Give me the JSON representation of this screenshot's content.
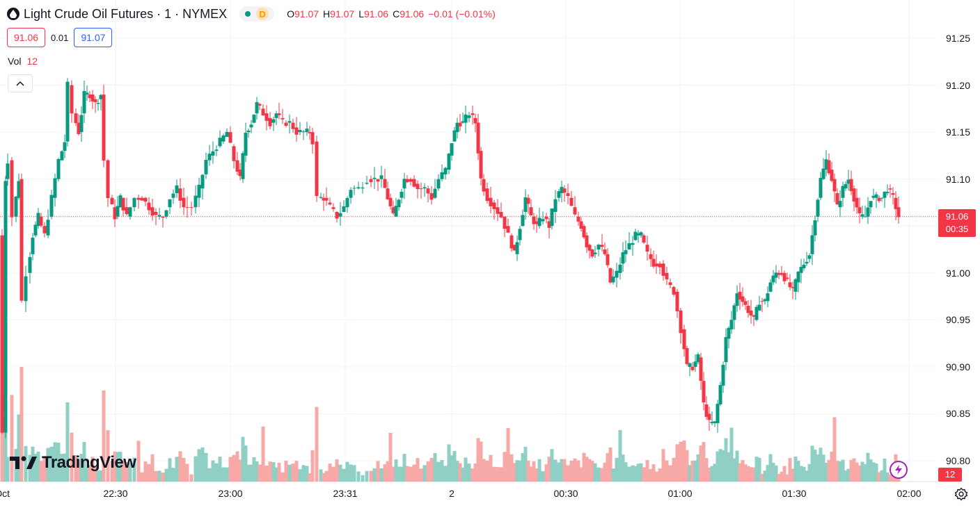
{
  "header": {
    "symbol_title": "Light Crude Oil Futures · 1 · NYMEX",
    "status_badge": "D",
    "ohlc": {
      "open_label": "O",
      "open": "91.07",
      "high_label": "H",
      "high": "91.07",
      "low_label": "L",
      "low": "91.06",
      "close_label": "C",
      "close": "91.06",
      "change": "−0.01 (−0.01%)"
    }
  },
  "trade": {
    "sell_price": "91.06",
    "spread": "0.01",
    "buy_price": "91.07"
  },
  "volume_legend": {
    "label": "Vol",
    "value": "12"
  },
  "price_axis": {
    "ticks": [
      "91.25",
      "91.20",
      "91.15",
      "91.10",
      "91.05",
      "91.00",
      "90.95",
      "90.90",
      "90.85",
      "90.80"
    ]
  },
  "time_axis": {
    "partial_label": "Oct",
    "ticks": [
      "22:30",
      "23:00",
      "23:31",
      "2",
      "00:30",
      "01:00",
      "01:30",
      "02:00"
    ]
  },
  "last_price": {
    "price": "91.06",
    "countdown": "00:35"
  },
  "last_volume": "12",
  "branding": {
    "logo_text": "TradingView"
  },
  "colors": {
    "up": "#089981",
    "down": "#f23645",
    "up_vol": "#8fcfc4",
    "down_vol": "#f7a9a7",
    "grid": "#f0f3fa",
    "text": "#131722"
  },
  "chart_data": {
    "type": "candlestick",
    "interval": "1 minute",
    "ylim": [
      90.775,
      91.27
    ],
    "price_ticks": [
      91.25,
      91.2,
      91.15,
      91.1,
      91.05,
      91.0,
      90.95,
      90.9,
      90.85,
      90.8
    ],
    "last_price": 91.06,
    "segments": [
      {
        "label": "start",
        "path": [
          [
            0,
            91.04
          ],
          [
            5,
            90.83
          ],
          [
            8,
            91.1
          ],
          [
            14,
            91.12
          ],
          [
            20,
            91.06
          ],
          [
            28,
            91.1
          ],
          [
            34,
            90.97
          ],
          [
            40,
            91.0
          ],
          [
            48,
            91.04
          ],
          [
            56,
            91.06
          ],
          [
            66,
            91.04
          ],
          [
            76,
            91.08
          ],
          [
            86,
            91.12
          ],
          [
            94,
            91.14
          ],
          [
            100,
            91.2
          ],
          [
            106,
            91.17
          ],
          [
            114,
            91.15
          ],
          [
            122,
            91.19
          ],
          [
            130,
            91.19
          ],
          [
            138,
            91.18
          ],
          [
            146,
            91.19
          ],
          [
            152,
            91.12
          ],
          [
            158,
            91.08
          ],
          [
            166,
            91.06
          ],
          [
            174,
            91.08
          ],
          [
            184,
            91.06
          ],
          [
            196,
            91.08
          ],
          [
            206,
            91.08
          ],
          [
            216,
            91.07
          ],
          [
            226,
            91.06
          ],
          [
            236,
            91.06
          ],
          [
            246,
            91.08
          ],
          [
            256,
            91.09
          ],
          [
            266,
            91.07
          ],
          [
            278,
            91.07
          ],
          [
            288,
            91.09
          ],
          [
            298,
            91.12
          ],
          [
            308,
            91.13
          ],
          [
            318,
            91.14
          ],
          [
            328,
            91.15
          ],
          [
            338,
            91.12
          ],
          [
            346,
            91.1
          ],
          [
            354,
            91.15
          ],
          [
            362,
            91.16
          ],
          [
            370,
            91.18
          ],
          [
            380,
            91.17
          ],
          [
            390,
            91.16
          ],
          [
            398,
            91.17
          ],
          [
            408,
            91.16
          ],
          [
            418,
            91.16
          ],
          [
            428,
            91.15
          ],
          [
            438,
            91.15
          ],
          [
            446,
            91.15
          ],
          [
            452,
            91.14
          ],
          [
            458,
            91.08
          ],
          [
            466,
            91.08
          ],
          [
            476,
            91.07
          ],
          [
            486,
            91.06
          ],
          [
            496,
            91.07
          ],
          [
            506,
            91.09
          ],
          [
            518,
            91.09
          ],
          [
            530,
            91.1
          ],
          [
            540,
            91.1
          ],
          [
            550,
            91.1
          ],
          [
            558,
            91.08
          ],
          [
            566,
            91.06
          ],
          [
            574,
            91.08
          ],
          [
            582,
            91.1
          ],
          [
            592,
            91.1
          ],
          [
            602,
            91.09
          ],
          [
            612,
            91.09
          ],
          [
            622,
            91.08
          ],
          [
            632,
            91.1
          ],
          [
            642,
            91.11
          ],
          [
            650,
            91.14
          ],
          [
            658,
            91.16
          ],
          [
            666,
            91.16
          ],
          [
            676,
            91.17
          ],
          [
            684,
            91.16
          ],
          [
            692,
            91.1
          ],
          [
            702,
            91.08
          ],
          [
            712,
            91.07
          ],
          [
            722,
            91.06
          ],
          [
            732,
            91.04
          ],
          [
            740,
            91.02
          ],
          [
            748,
            91.05
          ],
          [
            756,
            91.08
          ],
          [
            764,
            91.06
          ],
          [
            772,
            91.05
          ],
          [
            782,
            91.06
          ],
          [
            790,
            91.05
          ],
          [
            800,
            91.08
          ],
          [
            808,
            91.09
          ],
          [
            818,
            91.08
          ],
          [
            828,
            91.06
          ],
          [
            836,
            91.05
          ],
          [
            844,
            91.03
          ],
          [
            852,
            91.02
          ],
          [
            862,
            91.03
          ],
          [
            870,
            91.02
          ],
          [
            878,
            90.99
          ],
          [
            888,
            91.0
          ],
          [
            896,
            91.02
          ],
          [
            906,
            91.03
          ],
          [
            914,
            91.04
          ],
          [
            922,
            91.04
          ],
          [
            932,
            91.02
          ],
          [
            940,
            91.01
          ],
          [
            950,
            91.01
          ],
          [
            960,
            90.99
          ],
          [
            970,
            90.98
          ],
          [
            980,
            90.94
          ],
          [
            988,
            90.9
          ],
          [
            996,
            90.9
          ],
          [
            1004,
            90.91
          ],
          [
            1012,
            90.86
          ],
          [
            1020,
            90.84
          ],
          [
            1028,
            90.84
          ],
          [
            1036,
            90.88
          ],
          [
            1044,
            90.93
          ],
          [
            1052,
            90.95
          ],
          [
            1060,
            90.98
          ],
          [
            1068,
            90.97
          ],
          [
            1076,
            90.96
          ],
          [
            1084,
            90.95
          ],
          [
            1092,
            90.97
          ],
          [
            1100,
            90.97
          ],
          [
            1108,
            90.99
          ],
          [
            1116,
            91.0
          ],
          [
            1124,
            91.0
          ],
          [
            1132,
            90.99
          ],
          [
            1140,
            90.98
          ],
          [
            1148,
            91.0
          ],
          [
            1156,
            91.01
          ],
          [
            1164,
            91.02
          ],
          [
            1172,
            91.06
          ],
          [
            1180,
            91.1
          ],
          [
            1188,
            91.12
          ],
          [
            1196,
            91.1
          ],
          [
            1204,
            91.07
          ],
          [
            1212,
            91.09
          ],
          [
            1220,
            91.1
          ],
          [
            1228,
            91.08
          ],
          [
            1236,
            91.06
          ],
          [
            1244,
            91.06
          ],
          [
            1252,
            91.08
          ],
          [
            1260,
            91.08
          ],
          [
            1268,
            91.08
          ],
          [
            1276,
            91.09
          ],
          [
            1284,
            91.08
          ],
          [
            1292,
            91.06
          ]
        ]
      }
    ],
    "volume": {
      "max_visible": 90,
      "last": 12
    }
  }
}
